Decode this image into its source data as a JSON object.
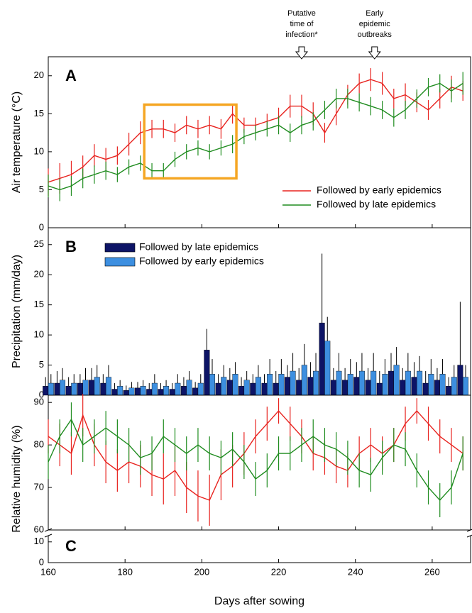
{
  "chart_data": [
    {
      "type": "line",
      "panel": "A",
      "ylabel": "Air temperature (°C)",
      "ylim": [
        0,
        22.5
      ],
      "yticks": [
        0,
        5,
        10,
        15,
        20
      ],
      "x": [
        160,
        163,
        166,
        169,
        172,
        175,
        178,
        181,
        184,
        187,
        190,
        193,
        196,
        199,
        202,
        205,
        208,
        211,
        214,
        217,
        220,
        223,
        226,
        229,
        232,
        235,
        238,
        241,
        244,
        247,
        250,
        253,
        256,
        259,
        262,
        265,
        268
      ],
      "series": [
        {
          "name": "Followed by early epidemics",
          "color": "#e8231f",
          "values": [
            6,
            6.5,
            7,
            8,
            9.5,
            9,
            9.5,
            11,
            12.5,
            13,
            13,
            12.5,
            13.5,
            13,
            13.5,
            13,
            15,
            13.5,
            13.5,
            14,
            14.5,
            16,
            16,
            15,
            12.5,
            15,
            17.5,
            19,
            19.5,
            19,
            17,
            17.5,
            16.5,
            15.5,
            17,
            18.5,
            18
          ],
          "errors": [
            1.8,
            2,
            1.8,
            1.5,
            1.5,
            1.5,
            1.2,
            1.5,
            1.5,
            1.2,
            1.2,
            1.2,
            1.2,
            1.2,
            1.2,
            1.3,
            1.3,
            1,
            1,
            1,
            1.3,
            1.5,
            1.5,
            1.5,
            1.3,
            1.5,
            1.3,
            1.3,
            1.5,
            1.5,
            1.3,
            1.5,
            1.3,
            1.3,
            1.3,
            1.5,
            1.3
          ]
        },
        {
          "name": "Followed by late epidemics",
          "color": "#1f8c1f",
          "values": [
            5.5,
            5,
            5.5,
            6.5,
            7,
            7.5,
            7,
            8,
            8.5,
            7.5,
            7.5,
            9,
            10,
            10.5,
            10,
            10.5,
            11,
            12,
            12.5,
            13,
            13.5,
            12.5,
            13.5,
            14,
            15.5,
            17,
            17,
            16.5,
            16,
            15.5,
            14.5,
            15.5,
            17,
            18.5,
            19,
            18,
            19
          ],
          "errors": [
            1.5,
            1.5,
            1.3,
            1.3,
            1.2,
            1.2,
            1,
            1,
            1,
            1,
            1,
            1,
            1,
            1,
            1,
            1,
            1.2,
            1,
            1,
            1,
            1.2,
            1.2,
            1.2,
            1.2,
            1.2,
            1.3,
            1.3,
            1.2,
            1.2,
            1.2,
            1.2,
            1.2,
            1.2,
            1.2,
            1.2,
            1.5,
            1.5
          ]
        }
      ],
      "legend": "lower right",
      "highlight": {
        "x": [
          185,
          209
        ],
        "y": [
          6.5,
          16.2
        ],
        "color": "#f5a623"
      },
      "annotations": [
        {
          "lines": [
            "Putative",
            "time of",
            "infection*"
          ],
          "x": 226
        },
        {
          "lines": [
            "Early",
            "epidemic",
            "outbreaks"
          ],
          "x": 245
        }
      ]
    },
    {
      "type": "bar",
      "panel": "B",
      "ylabel": "Precipitation (mm/day)",
      "ylim": [
        0,
        27.8
      ],
      "yticks": [
        0,
        5,
        10,
        15,
        20,
        25
      ],
      "x": [
        160,
        163,
        166,
        169,
        172,
        175,
        178,
        181,
        184,
        187,
        190,
        193,
        196,
        199,
        202,
        205,
        208,
        211,
        214,
        217,
        220,
        223,
        226,
        229,
        232,
        235,
        238,
        241,
        244,
        247,
        250,
        253,
        256,
        259,
        262,
        265,
        268
      ],
      "series": [
        {
          "name": "Followed by late epidemics",
          "color": "#0d1466",
          "values": [
            1.5,
            2,
            1.5,
            2,
            2.5,
            2,
            1,
            0.8,
            1.2,
            1,
            1,
            1,
            1.5,
            1.2,
            7.5,
            2,
            2.5,
            1.5,
            2,
            2,
            2,
            3,
            2.5,
            3,
            12,
            2.5,
            2.5,
            3,
            2.5,
            2,
            4,
            2.5,
            3,
            2,
            2.5,
            1.5,
            5
          ],
          "errors": [
            1.5,
            2,
            1.5,
            1.5,
            2,
            1.5,
            1,
            0.8,
            1,
            1,
            1,
            1,
            1.5,
            1,
            3.5,
            1.5,
            2,
            1.5,
            1.5,
            1.5,
            2,
            2,
            2,
            2.5,
            11.5,
            2,
            2,
            2.5,
            2,
            2,
            3,
            2,
            2.5,
            2,
            2,
            1.5,
            10.5
          ]
        },
        {
          "name": "Followed by early epidemics",
          "color": "#3d8fe0",
          "values": [
            2,
            2.5,
            2,
            2.5,
            3,
            3,
            1.5,
            1.2,
            1.5,
            2,
            1.5,
            2,
            2.5,
            2,
            3.5,
            3,
            3.5,
            2.5,
            3,
            3.5,
            3.5,
            4,
            5,
            4,
            9,
            4,
            3.5,
            4,
            4,
            3.5,
            5,
            4,
            4,
            3.5,
            3.5,
            3,
            3
          ],
          "errors": [
            1.5,
            2,
            1.5,
            2,
            2,
            2,
            1,
            1,
            1,
            1.5,
            1,
            1.5,
            1.5,
            1.5,
            2.5,
            2,
            2,
            1.5,
            2,
            2.5,
            2.5,
            3,
            3.5,
            3,
            4,
            3,
            2.5,
            3,
            3,
            2.5,
            3,
            3,
            2.5,
            2.5,
            2.5,
            2,
            2
          ]
        }
      ],
      "legend": "upper left"
    },
    {
      "type": "line",
      "panel": "C",
      "ylabel": "Relative humidity (%)",
      "xlabel": "Days after sowing",
      "ylim": [
        60,
        91.7
      ],
      "yticks": [
        60,
        70,
        80,
        90
      ],
      "ylim_lower": [
        0,
        13
      ],
      "yticks_lower": [
        0,
        10
      ],
      "xlim": [
        160,
        270
      ],
      "xticks": [
        160,
        180,
        200,
        220,
        240,
        260
      ],
      "x": [
        160,
        163,
        166,
        169,
        172,
        175,
        178,
        181,
        184,
        187,
        190,
        193,
        196,
        199,
        202,
        205,
        208,
        211,
        214,
        217,
        220,
        223,
        226,
        229,
        232,
        235,
        238,
        241,
        244,
        247,
        250,
        253,
        256,
        259,
        262,
        265,
        268
      ],
      "series": [
        {
          "name": "Followed by early epidemics",
          "color": "#e8231f",
          "values": [
            82,
            80,
            78,
            87,
            80,
            76,
            74,
            76,
            75,
            73,
            72,
            74,
            70,
            68,
            67,
            73,
            75,
            78,
            82,
            85,
            88,
            85,
            82,
            78,
            77,
            75,
            74,
            78,
            80,
            78,
            80,
            85,
            88,
            85,
            82,
            80,
            78
          ],
          "errors": [
            4,
            5,
            5,
            5,
            5,
            5,
            5,
            5,
            5,
            5,
            6,
            6,
            6,
            6,
            6,
            6,
            5,
            5,
            4,
            4,
            3,
            4,
            4,
            4,
            4,
            4,
            4,
            4,
            4,
            4,
            4,
            4,
            3,
            4,
            4,
            4,
            4
          ]
        },
        {
          "name": "Followed by late epidemics",
          "color": "#1f8c1f",
          "values": [
            76,
            82,
            86,
            80,
            82,
            84,
            82,
            80,
            77,
            78,
            82,
            80,
            78,
            80,
            78,
            77,
            79,
            76,
            72,
            74,
            78,
            78,
            80,
            82,
            80,
            79,
            77,
            74,
            73,
            77,
            80,
            79,
            74,
            70,
            67,
            70,
            78
          ],
          "errors": [
            4,
            4,
            4,
            4,
            4,
            4,
            4,
            4,
            4,
            4,
            4,
            4,
            4,
            4,
            4,
            4,
            4,
            4,
            4,
            4,
            4,
            4,
            4,
            4,
            4,
            4,
            4,
            4,
            4,
            4,
            4,
            4,
            4,
            4,
            4,
            4,
            4
          ]
        }
      ]
    }
  ]
}
